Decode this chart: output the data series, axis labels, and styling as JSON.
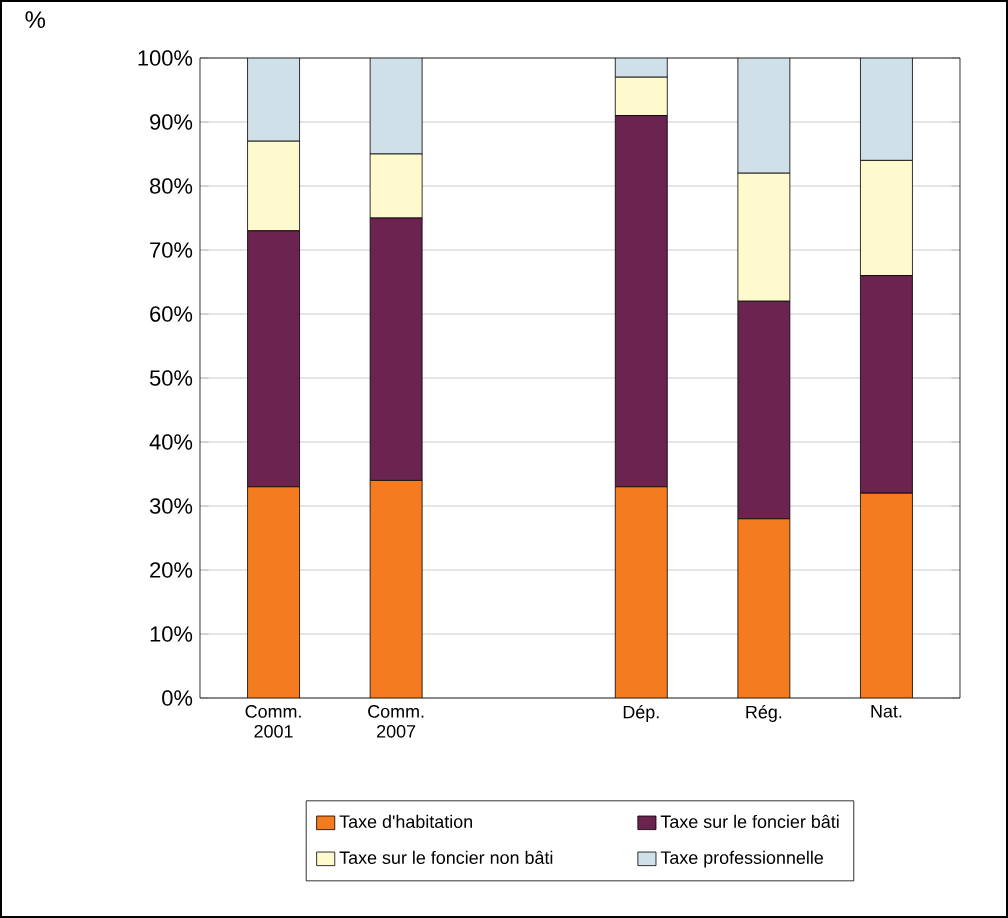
{
  "chart_data": {
    "type": "bar",
    "stacked": true,
    "ylabel": "%",
    "categories": [
      "Comm. 2001",
      "Comm. 2007",
      null,
      "Dép.",
      "Rég.",
      "Nat."
    ],
    "series": [
      {
        "name": "Taxe d'habitation",
        "color": "#f47b20",
        "values": [
          33,
          34,
          null,
          33,
          28,
          32
        ]
      },
      {
        "name": "Taxe sur le foncier bâti",
        "color": "#6b2350",
        "values": [
          40,
          41,
          null,
          58,
          34,
          34
        ]
      },
      {
        "name": "Taxe sur le foncier non bâti",
        "color": "#fffacd",
        "values": [
          14,
          10,
          null,
          6,
          20,
          18
        ]
      },
      {
        "name": "Taxe professionnelle",
        "color": "#cfe0e8",
        "values": [
          13,
          15,
          null,
          3,
          18,
          16
        ]
      }
    ],
    "ylim": [
      0,
      100
    ],
    "yticks": [
      {
        "value": 0,
        "label": "0%"
      },
      {
        "value": 10,
        "label": "10%"
      },
      {
        "value": 20,
        "label": "20%"
      },
      {
        "value": 30,
        "label": "30%"
      },
      {
        "value": 40,
        "label": "40%"
      },
      {
        "value": 50,
        "label": "50%"
      },
      {
        "value": 60,
        "label": "60%"
      },
      {
        "value": 70,
        "label": "70%"
      },
      {
        "value": 80,
        "label": "80%"
      },
      {
        "value": 90,
        "label": "90%"
      },
      {
        "value": 100,
        "label": "100%"
      }
    ],
    "grid": "y",
    "legend": "bottom"
  }
}
